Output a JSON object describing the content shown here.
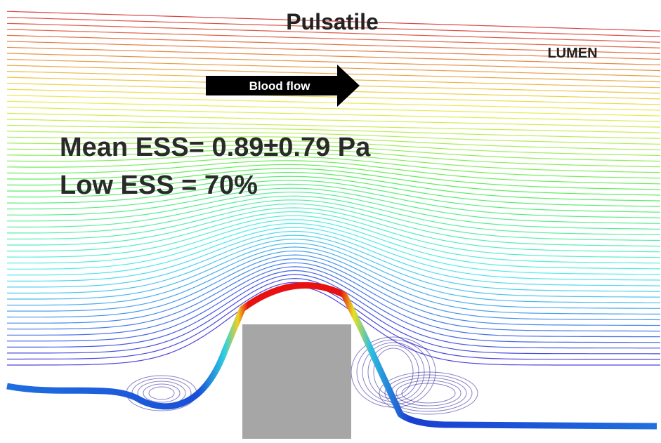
{
  "title": "Pulsatile",
  "region_label": "LUMEN",
  "arrow_label": "Blood flow",
  "annotations": [
    "Mean ESS= 0.89±0.79 Pa",
    "Low ESS = 70%"
  ]
}
